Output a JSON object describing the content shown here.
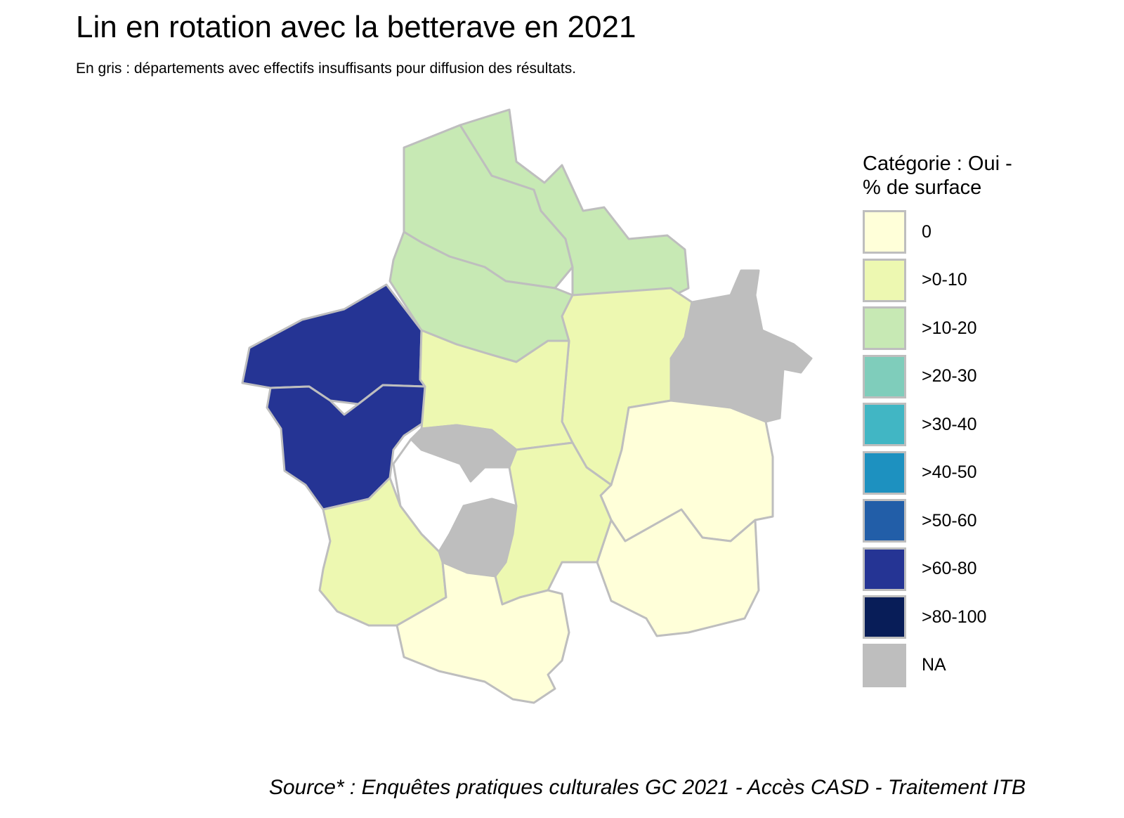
{
  "title": "Lin en rotation avec la betterave en 2021",
  "subtitle": "En gris : départements avec effectifs insuffisants pour diffusion des résultats.",
  "caption": "Source* : Enquêtes pratiques culturales GC 2021 - Accès CASD - Traitement ITB",
  "chart_data": {
    "type": "choropleth",
    "legend": {
      "title": "Catégorie : Oui - % de surface",
      "placement": "right",
      "items": [
        {
          "label": "0",
          "color": "#ffffd9"
        },
        {
          "label": ">0-10",
          "color": "#edf8b1"
        },
        {
          "label": ">10-20",
          "color": "#c7e9b4"
        },
        {
          "label": ">20-30",
          "color": "#7fcdbb"
        },
        {
          "label": ">30-40",
          "color": "#41b6c4"
        },
        {
          "label": ">40-50",
          "color": "#1d91c0"
        },
        {
          "label": ">50-60",
          "color": "#225ea8"
        },
        {
          "label": ">60-80",
          "color": "#253494"
        },
        {
          "label": ">80-100",
          "color": "#081d58"
        },
        {
          "label": "NA",
          "color": "#bebebe"
        }
      ]
    },
    "border_color": "#bebebe",
    "regions": [
      {
        "category": ">10-20"
      },
      {
        "category": ">10-20"
      },
      {
        "category": ">10-20"
      },
      {
        "category": ">0-10"
      },
      {
        "category": "NA"
      },
      {
        "category": "0"
      },
      {
        "category": "0"
      },
      {
        "category": ">60-80"
      },
      {
        "category": ">60-80"
      },
      {
        "category": ">0-10"
      },
      {
        "category": "NA"
      },
      {
        "category": "none"
      },
      {
        "category": "NA"
      },
      {
        "category": ">0-10"
      },
      {
        "category": ">0-10"
      },
      {
        "category": "0"
      }
    ]
  }
}
